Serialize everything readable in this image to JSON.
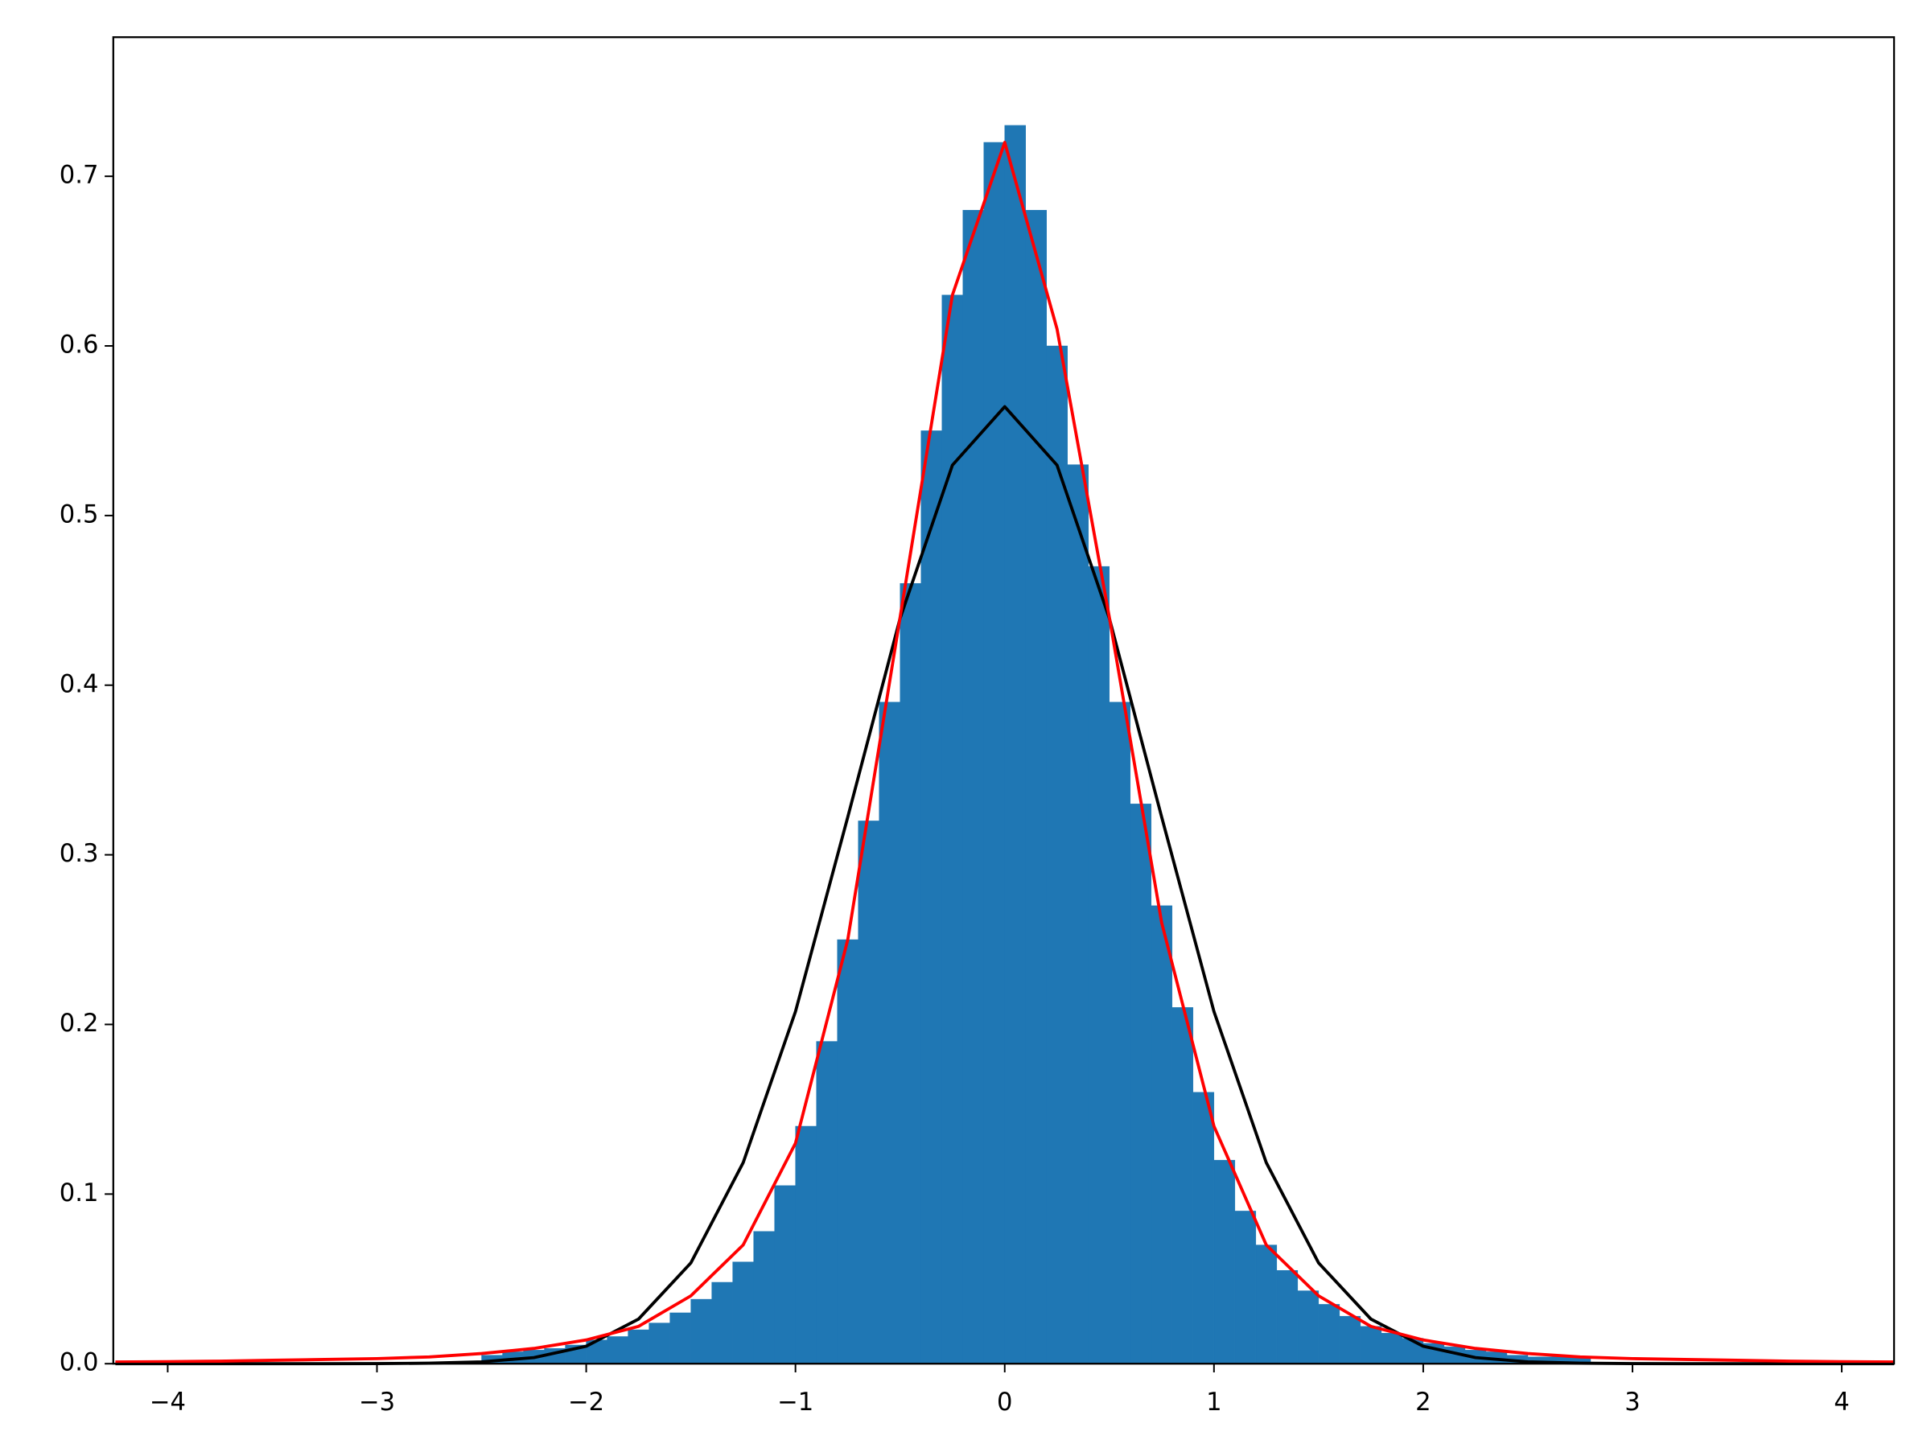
{
  "chart_data": {
    "type": "histogram",
    "bins": [
      -2.5,
      -2.4,
      -2.3,
      -2.2,
      -2.1,
      -2.0,
      -1.9,
      -1.8,
      -1.7,
      -1.6,
      -1.5,
      -1.4,
      -1.3,
      -1.2,
      -1.1,
      -1.0,
      -0.9,
      -0.8,
      -0.7,
      -0.6,
      -0.5,
      -0.4,
      -0.3,
      -0.2,
      -0.1,
      0.0,
      0.1,
      0.2,
      0.3,
      0.4,
      0.5,
      0.6,
      0.7,
      0.8,
      0.9,
      1.0,
      1.1,
      1.2,
      1.3,
      1.4,
      1.5,
      1.6,
      1.7,
      1.8,
      1.9,
      2.0,
      2.1,
      2.2,
      2.3,
      2.4,
      2.5,
      2.6,
      2.7,
      2.8
    ],
    "values": [
      0.005,
      0.007,
      0.008,
      0.009,
      0.011,
      0.014,
      0.016,
      0.02,
      0.024,
      0.03,
      0.038,
      0.048,
      0.06,
      0.078,
      0.105,
      0.14,
      0.19,
      0.25,
      0.32,
      0.39,
      0.46,
      0.55,
      0.63,
      0.68,
      0.72,
      0.73,
      0.68,
      0.6,
      0.53,
      0.47,
      0.39,
      0.33,
      0.27,
      0.21,
      0.16,
      0.12,
      0.09,
      0.07,
      0.055,
      0.043,
      0.035,
      0.028,
      0.022,
      0.018,
      0.015,
      0.012,
      0.01,
      0.008,
      0.007,
      0.005,
      0.004,
      0.004,
      0.004
    ],
    "color": "#1f77b4",
    "lines": [
      {
        "color": "#000000",
        "x": [
          -4.25,
          -4,
          -3.75,
          -3.5,
          -3.25,
          -3,
          -2.75,
          -2.5,
          -2.25,
          -2,
          -1.75,
          -1.5,
          -1.25,
          -1,
          -0.75,
          -0.5,
          -0.25,
          0,
          0.25,
          0.5,
          0.75,
          1,
          1.25,
          1.5,
          1.75,
          2,
          2.25,
          2.5,
          2.75,
          3,
          3.25,
          3.5,
          3.75,
          4,
          4.25
        ],
        "values": [
          0,
          0,
          0,
          3e-06,
          1e-05,
          7e-05,
          0.0003,
          0.0011,
          0.0036,
          0.0103,
          0.0263,
          0.0594,
          0.1185,
          0.2076,
          0.3223,
          0.4394,
          0.5297,
          0.5642,
          0.5297,
          0.4394,
          0.3223,
          0.2076,
          0.1185,
          0.0594,
          0.0263,
          0.0103,
          0.0036,
          0.0011,
          0.0003,
          7e-05,
          1e-05,
          3e-06,
          0,
          0,
          0
        ]
      },
      {
        "color": "#ff0000",
        "x": [
          -4.25,
          -4,
          -3.75,
          -3.5,
          -3.25,
          -3,
          -2.75,
          -2.5,
          -2.25,
          -2,
          -1.75,
          -1.5,
          -1.25,
          -1,
          -0.75,
          -0.5,
          -0.25,
          0,
          0.25,
          0.5,
          0.75,
          1,
          1.25,
          1.5,
          1.75,
          2,
          2.25,
          2.5,
          2.75,
          3,
          3.25,
          3.5,
          3.75,
          4,
          4.25
        ],
        "values": [
          0.001,
          0.0012,
          0.0015,
          0.002,
          0.0025,
          0.003,
          0.004,
          0.006,
          0.009,
          0.014,
          0.022,
          0.04,
          0.07,
          0.13,
          0.25,
          0.44,
          0.63,
          0.72,
          0.61,
          0.44,
          0.26,
          0.14,
          0.07,
          0.04,
          0.022,
          0.014,
          0.009,
          0.006,
          0.004,
          0.003,
          0.0025,
          0.002,
          0.0015,
          0.0012,
          0.001
        ]
      }
    ],
    "xlim": [
      -4.26,
      4.25
    ],
    "ylim": [
      0,
      0.782
    ],
    "xticks": [
      {
        "value": -4,
        "label": "−4"
      },
      {
        "value": -3,
        "label": "−3"
      },
      {
        "value": -2,
        "label": "−2"
      },
      {
        "value": -1,
        "label": "−1"
      },
      0,
      1,
      2,
      3,
      4
    ],
    "yticks": [
      {
        "value": 0,
        "label": "0.0"
      },
      0.1,
      0.2,
      0.3,
      0.4,
      0.5,
      0.6,
      0.7
    ]
  }
}
